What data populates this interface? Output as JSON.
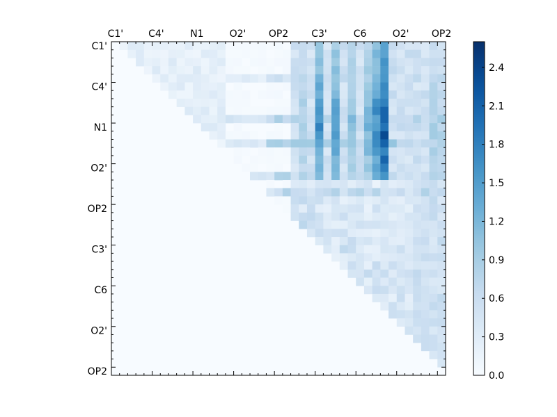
{
  "chart_data": {
    "type": "heatmap",
    "title": "",
    "x_tick_labels": [
      "C1'",
      "C4'",
      "N1",
      "O2'",
      "OP2",
      "C3'",
      "C6",
      "O2'",
      "OP2"
    ],
    "y_tick_labels": [
      "C1'",
      "C4'",
      "N1",
      "O2'",
      "OP2",
      "C3'",
      "C6",
      "O2'",
      "OP2"
    ],
    "matrix_size": 41,
    "upper_triangular": true,
    "colormap": "Blues",
    "color_range": [
      0.0,
      2.6
    ],
    "colorbar_ticks": [
      "0.0",
      "0.3",
      "0.6",
      "0.9",
      "1.2",
      "1.5",
      "1.8",
      "2.1",
      "2.4"
    ],
    "hot_columns": [
      {
        "col": 23,
        "peak": 1.0
      },
      {
        "col": 25,
        "peak": 1.8
      },
      {
        "col": 27,
        "peak": 1.6
      },
      {
        "col": 29,
        "peak": 1.25
      },
      {
        "col": 31,
        "peak": 1.35
      },
      {
        "col": 32,
        "peak": 1.9
      },
      {
        "col": 33,
        "peak": 2.55
      },
      {
        "col": 39,
        "peak": 1.0
      },
      {
        "col": 40,
        "peak": 0.9
      }
    ],
    "band_rows": [
      {
        "row": 4,
        "strength": 0.85
      },
      {
        "row": 9,
        "strength": 1.05
      },
      {
        "row": 12,
        "strength": 1.15
      },
      {
        "row": 16,
        "strength": 1.0
      },
      {
        "row": 18,
        "strength": 0.95
      }
    ]
  }
}
